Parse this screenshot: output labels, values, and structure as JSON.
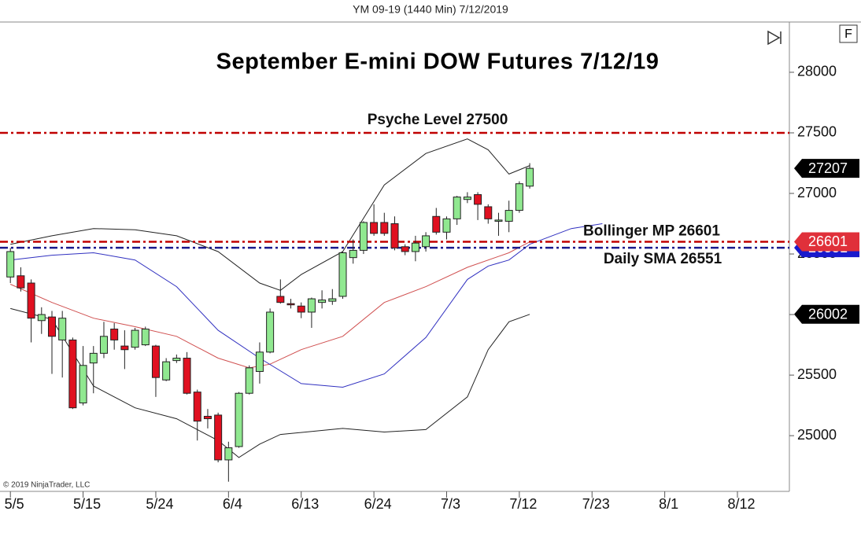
{
  "header": "YM 09-19 (1440 Min)  7/12/2019",
  "copyright": "© 2019 NinjaTrader, LLC",
  "badge": "F",
  "chart_data": {
    "type": "candlestick",
    "title": "September E-mini DOW Futures 7/12/19",
    "up_color": "#90e890",
    "down_color": "#e01020",
    "open": [
      26310,
      26320,
      26260,
      25950,
      25980,
      25790,
      25790,
      25270,
      25600,
      25680,
      25880,
      25740,
      25730,
      25750,
      25740,
      25460,
      25620,
      25640,
      25360,
      25160,
      25170,
      24800,
      24910,
      25350,
      25530,
      25690,
      26150,
      26090,
      26070,
      26020,
      26100,
      26110,
      26150,
      26470,
      26530,
      26760,
      26760,
      26750,
      26560,
      26520,
      26560,
      26810,
      26680,
      26790,
      26950,
      26990,
      26890,
      26770,
      26770,
      26860,
      27060
    ],
    "high": [
      26550,
      26390,
      26290,
      26060,
      26030,
      26030,
      25810,
      25740,
      25740,
      25940,
      25930,
      25870,
      25890,
      25900,
      25750,
      25640,
      25670,
      25690,
      25380,
      25220,
      25190,
      24950,
      25360,
      25580,
      25770,
      26050,
      26290,
      26130,
      26100,
      26140,
      26200,
      26210,
      26520,
      26620,
      26770,
      26910,
      26840,
      26810,
      26580,
      26650,
      26680,
      26880,
      26810,
      26980,
      27010,
      27010,
      26910,
      26840,
      26940,
      27100,
      27250
    ],
    "low": [
      26260,
      26190,
      25770,
      25840,
      25510,
      25480,
      25220,
      25250,
      25350,
      25640,
      25710,
      25550,
      25710,
      25740,
      25320,
      25450,
      25600,
      25340,
      24960,
      25060,
      24780,
      24620,
      24900,
      25340,
      25430,
      25680,
      26090,
      26050,
      25970,
      25890,
      26050,
      26080,
      26130,
      26420,
      26500,
      26650,
      26650,
      26530,
      26490,
      26440,
      26520,
      26660,
      26620,
      26740,
      26920,
      26780,
      26750,
      26650,
      26680,
      26840,
      27040
    ],
    "close": [
      26520,
      26220,
      25970,
      26000,
      25820,
      25970,
      25230,
      25580,
      25680,
      25820,
      25790,
      25710,
      25870,
      25880,
      25480,
      25610,
      25640,
      25350,
      25120,
      25140,
      24800,
      24900,
      25350,
      25560,
      25690,
      26020,
      26100,
      26080,
      26020,
      26130,
      26120,
      26130,
      26510,
      26530,
      26760,
      26670,
      26670,
      26550,
      26520,
      26590,
      26650,
      26680,
      26790,
      26970,
      26970,
      26910,
      26790,
      26780,
      26860,
      27080,
      27207
    ],
    "overlays": [
      {
        "color": "#222222",
        "x": [
          0,
          4,
          8,
          12,
          16,
          20,
          24,
          26,
          28,
          32,
          36,
          40,
          44,
          46,
          48,
          50
        ],
        "values": [
          26580,
          26650,
          26710,
          26700,
          26650,
          26520,
          26260,
          26200,
          26330,
          26520,
          27070,
          27330,
          27450,
          27360,
          27160,
          27230
        ]
      },
      {
        "color": "#222222",
        "x": [
          0,
          4,
          8,
          12,
          16,
          20,
          22,
          24,
          26,
          32,
          36,
          40,
          44,
          46,
          48,
          50
        ],
        "values": [
          26050,
          25960,
          25410,
          25230,
          25140,
          24960,
          24820,
          24930,
          25010,
          25060,
          25030,
          25050,
          25320,
          25710,
          25940,
          26002
        ]
      },
      {
        "color": "#d05050",
        "x": [
          0,
          4,
          8,
          12,
          16,
          20,
          23,
          25,
          28,
          32,
          36,
          40,
          44,
          48,
          50
        ],
        "values": [
          26250,
          26100,
          25970,
          25900,
          25820,
          25640,
          25560,
          25590,
          25710,
          25820,
          26100,
          26230,
          26390,
          26510,
          26600
        ]
      },
      {
        "color": "#3030c0",
        "x": [
          0,
          4,
          8,
          12,
          16,
          20,
          24,
          28,
          32,
          36,
          40,
          44,
          46,
          48,
          50,
          54,
          57
        ],
        "values": [
          26450,
          26490,
          26510,
          26450,
          26230,
          25870,
          25640,
          25430,
          25400,
          25510,
          25810,
          26290,
          26400,
          26450,
          26580,
          26710,
          26750
        ]
      }
    ],
    "levels": [
      {
        "label": "Psyche Level 27500",
        "value": 27500,
        "color": "#c00000"
      },
      {
        "label": "Bollinger MP 26601",
        "value": 26601,
        "color": "#c00000"
      },
      {
        "label": "Daily SMA 26551",
        "value": 26551,
        "color": "#1a1a8c"
      }
    ],
    "markers": [
      {
        "value": 27207,
        "color": "#000000"
      },
      {
        "value": 26551,
        "color": "#1a1acc"
      },
      {
        "value": 26601,
        "color": "#e0303a"
      },
      {
        "value": 26002,
        "color": "#000000"
      }
    ],
    "xlim": [
      -1,
      75
    ],
    "xticks": [
      {
        "value": 0,
        "label": "5/5"
      },
      {
        "value": 7,
        "label": "5/15"
      },
      {
        "value": 14,
        "label": "5/24"
      },
      {
        "value": 21,
        "label": "6/4"
      },
      {
        "value": 28,
        "label": "6/13"
      },
      {
        "value": 35,
        "label": "6/24"
      },
      {
        "value": 42,
        "label": "7/3"
      },
      {
        "value": 49,
        "label": "7/12"
      },
      {
        "value": 56,
        "label": "7/23"
      },
      {
        "value": 63,
        "label": "8/1"
      },
      {
        "value": 70,
        "label": "8/12"
      }
    ],
    "ylim": [
      24540,
      28415
    ],
    "yticks": [
      25000,
      25500,
      26000,
      26500,
      27000,
      27500,
      28000
    ]
  }
}
